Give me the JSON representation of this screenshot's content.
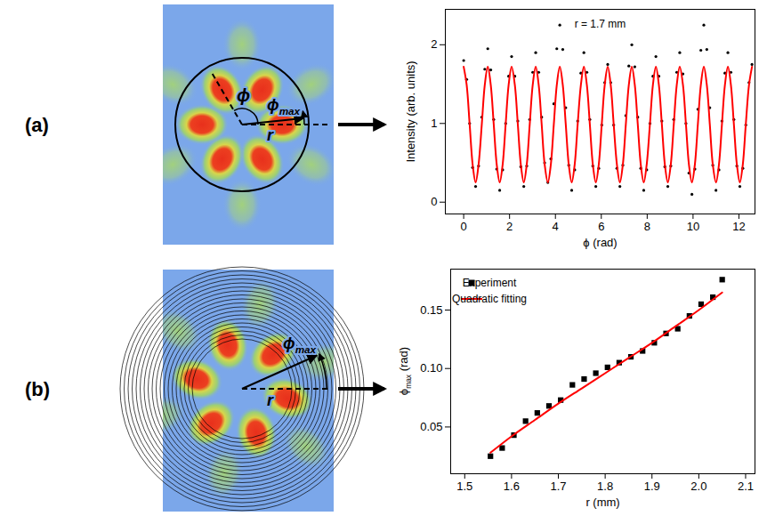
{
  "figure": {
    "panels": [
      {
        "label": "(a)",
        "symbols": {
          "phi": "ϕ",
          "r": "r",
          "phi_max": {
            "text": "ϕ",
            "subscript": "max"
          }
        }
      },
      {
        "label": "(b)",
        "symbols": {
          "r": "r",
          "phi_max": {
            "text": "ϕ",
            "subscript": "max"
          }
        }
      }
    ]
  },
  "chart_data": [
    {
      "type": "line",
      "annotations": [
        "r = 1.7 mm"
      ],
      "x_label": "ϕ (rad)",
      "y_label": "Intensity (arb. units)",
      "xlim": [
        -0.8,
        12.7
      ],
      "ylim": [
        -0.15,
        2.45
      ],
      "xticks": [
        0,
        2,
        4,
        6,
        8,
        10,
        12
      ],
      "yticks": [
        0,
        1,
        2
      ],
      "x": [
        0,
        0.13,
        0.26,
        0.39,
        0.52,
        0.65,
        0.79,
        0.92,
        1.05,
        1.18,
        1.31,
        1.44,
        1.57,
        1.7,
        1.83,
        1.96,
        2.09,
        2.23,
        2.36,
        2.49,
        2.62,
        2.75,
        2.88,
        3.01,
        3.14,
        3.27,
        3.4,
        3.53,
        3.67,
        3.8,
        3.93,
        4.06,
        4.19,
        4.32,
        4.45,
        4.58,
        4.71,
        4.84,
        4.97,
        5.11,
        5.24,
        5.37,
        5.5,
        5.63,
        5.76,
        5.89,
        6.02,
        6.15,
        6.28,
        6.41,
        6.54,
        6.68,
        6.81,
        6.94,
        7.07,
        7.2,
        7.33,
        7.46,
        7.59,
        7.72,
        7.85,
        7.98,
        8.12,
        8.25,
        8.38,
        8.51,
        8.64,
        8.77,
        8.9,
        9.03,
        9.16,
        9.29,
        9.42,
        9.56,
        9.69,
        9.82,
        9.95,
        10.08,
        10.21,
        10.34,
        10.47,
        10.6,
        10.73,
        10.86,
        11.0,
        11.13,
        11.26,
        11.39,
        11.52,
        11.65,
        11.78,
        11.91,
        12.04,
        12.17,
        12.3,
        12.44,
        12.57
      ],
      "series": [
        {
          "type": "scatter",
          "marker": "circle",
          "color": "#000000",
          "values": [
            1.8,
            1.56,
            1.0,
            0.44,
            0.2,
            0.46,
            1.08,
            1.69,
            1.95,
            1.68,
            1.05,
            0.42,
            0.15,
            0.41,
            1.0,
            1.6,
            1.85,
            1.6,
            1.03,
            0.45,
            0.2,
            0.46,
            1.05,
            1.65,
            1.9,
            1.65,
            1.08,
            0.5,
            0.25,
            0.55,
            1.25,
            1.95,
            2.25,
            1.94,
            1.2,
            0.47,
            0.15,
            0.41,
            1.03,
            1.64,
            1.9,
            1.65,
            1.05,
            0.46,
            0.2,
            0.43,
            0.98,
            1.52,
            1.75,
            1.52,
            0.98,
            0.43,
            0.2,
            0.47,
            1.1,
            1.73,
            2.0,
            1.72,
            1.08,
            0.43,
            0.15,
            0.41,
            1.0,
            1.6,
            1.85,
            1.6,
            1.03,
            0.45,
            0.2,
            0.46,
            1.05,
            1.65,
            1.9,
            1.63,
            1.0,
            0.37,
            0.1,
            0.42,
            1.18,
            1.93,
            2.25,
            1.94,
            1.2,
            0.47,
            0.15,
            0.41,
            1.03,
            1.64,
            1.9,
            1.65,
            1.05,
            0.46,
            0.2,
            0.43,
            0.98,
            1.52,
            1.75
          ]
        },
        {
          "type": "line",
          "line_style": "solid",
          "color": "#ff0000",
          "values": [
            1.72,
            1.49,
            0.99,
            0.48,
            0.25,
            0.48,
            0.99,
            1.49,
            1.72,
            1.49,
            0.99,
            0.48,
            0.25,
            0.48,
            0.99,
            1.49,
            1.72,
            1.49,
            0.99,
            0.48,
            0.25,
            0.48,
            0.99,
            1.49,
            1.72,
            1.49,
            0.99,
            0.48,
            0.25,
            0.48,
            0.99,
            1.49,
            1.72,
            1.49,
            0.99,
            0.48,
            0.25,
            0.48,
            0.99,
            1.49,
            1.72,
            1.49,
            0.99,
            0.48,
            0.25,
            0.48,
            0.99,
            1.49,
            1.72,
            1.49,
            0.99,
            0.48,
            0.25,
            0.48,
            0.99,
            1.49,
            1.72,
            1.49,
            0.99,
            0.48,
            0.25,
            0.48,
            0.99,
            1.49,
            1.72,
            1.49,
            0.99,
            0.48,
            0.25,
            0.48,
            0.99,
            1.49,
            1.72,
            1.49,
            0.99,
            0.48,
            0.25,
            0.48,
            0.99,
            1.49,
            1.72,
            1.49,
            0.99,
            0.48,
            0.25,
            0.48,
            0.99,
            1.49,
            1.72,
            1.49,
            0.99,
            0.48,
            0.25,
            0.48,
            0.99,
            1.49,
            1.72
          ]
        }
      ]
    },
    {
      "type": "scatter",
      "x_label": "r (mm)",
      "y_label": {
        "text": "ϕ",
        "subscript": "max",
        "suffix": " (rad)"
      },
      "xlim": [
        1.47,
        2.12
      ],
      "ylim": [
        0.01,
        0.185
      ],
      "xticks": [
        1.5,
        1.6,
        1.7,
        1.8,
        1.9,
        {
          "value": 2,
          "label": "2.0"
        },
        2.1
      ],
      "yticks": [
        0.05,
        {
          "value": 0.1,
          "label": "0.10"
        },
        0.15
      ],
      "legend": "upper left",
      "series": [
        {
          "name": "Experiment",
          "type": "scatter",
          "marker": "square",
          "color": "#000000",
          "x": [
            1.555,
            1.58,
            1.605,
            1.63,
            1.655,
            1.68,
            1.705,
            1.73,
            1.755,
            1.78,
            1.805,
            1.83,
            1.855,
            1.88,
            1.905,
            1.93,
            1.955,
            1.98,
            2.005,
            2.03,
            2.05
          ],
          "values": [
            0.025,
            0.032,
            0.043,
            0.055,
            0.062,
            0.068,
            0.073,
            0.086,
            0.091,
            0.096,
            0.101,
            0.105,
            0.11,
            0.115,
            0.122,
            0.13,
            0.134,
            0.145,
            0.155,
            0.161,
            0.176
          ]
        },
        {
          "name": "Quadratic fitting",
          "type": "line",
          "line_style": "solid",
          "color": "#ff0000",
          "x": [
            1.555,
            1.6,
            1.65,
            1.7,
            1.75,
            1.8,
            1.85,
            1.9,
            1.95,
            2.0,
            2.05
          ],
          "values": [
            0.028,
            0.042,
            0.056,
            0.07,
            0.083,
            0.096,
            0.109,
            0.122,
            0.136,
            0.15,
            0.165
          ]
        }
      ]
    }
  ]
}
